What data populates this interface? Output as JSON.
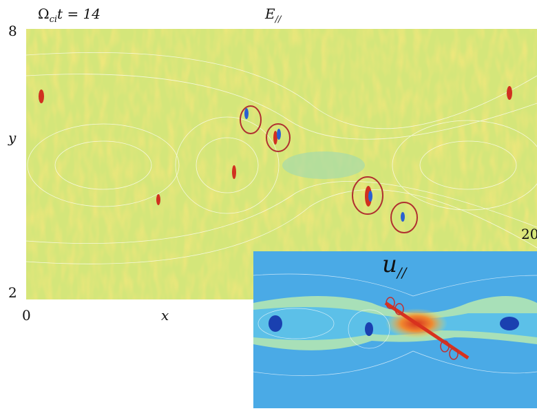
{
  "header": {
    "time_label": {
      "symbol": "Ω",
      "subscript": "ci",
      "rest": "t = 14"
    },
    "panel_title": {
      "symbol": "E",
      "subscript": "//"
    }
  },
  "axes": {
    "y_top": "8",
    "y_bottom": "2",
    "y_label": "y",
    "x_left": "0",
    "x_label": "x",
    "x_right": "20"
  },
  "inset": {
    "title": {
      "symbol": "u",
      "subscript": "//"
    }
  }
}
